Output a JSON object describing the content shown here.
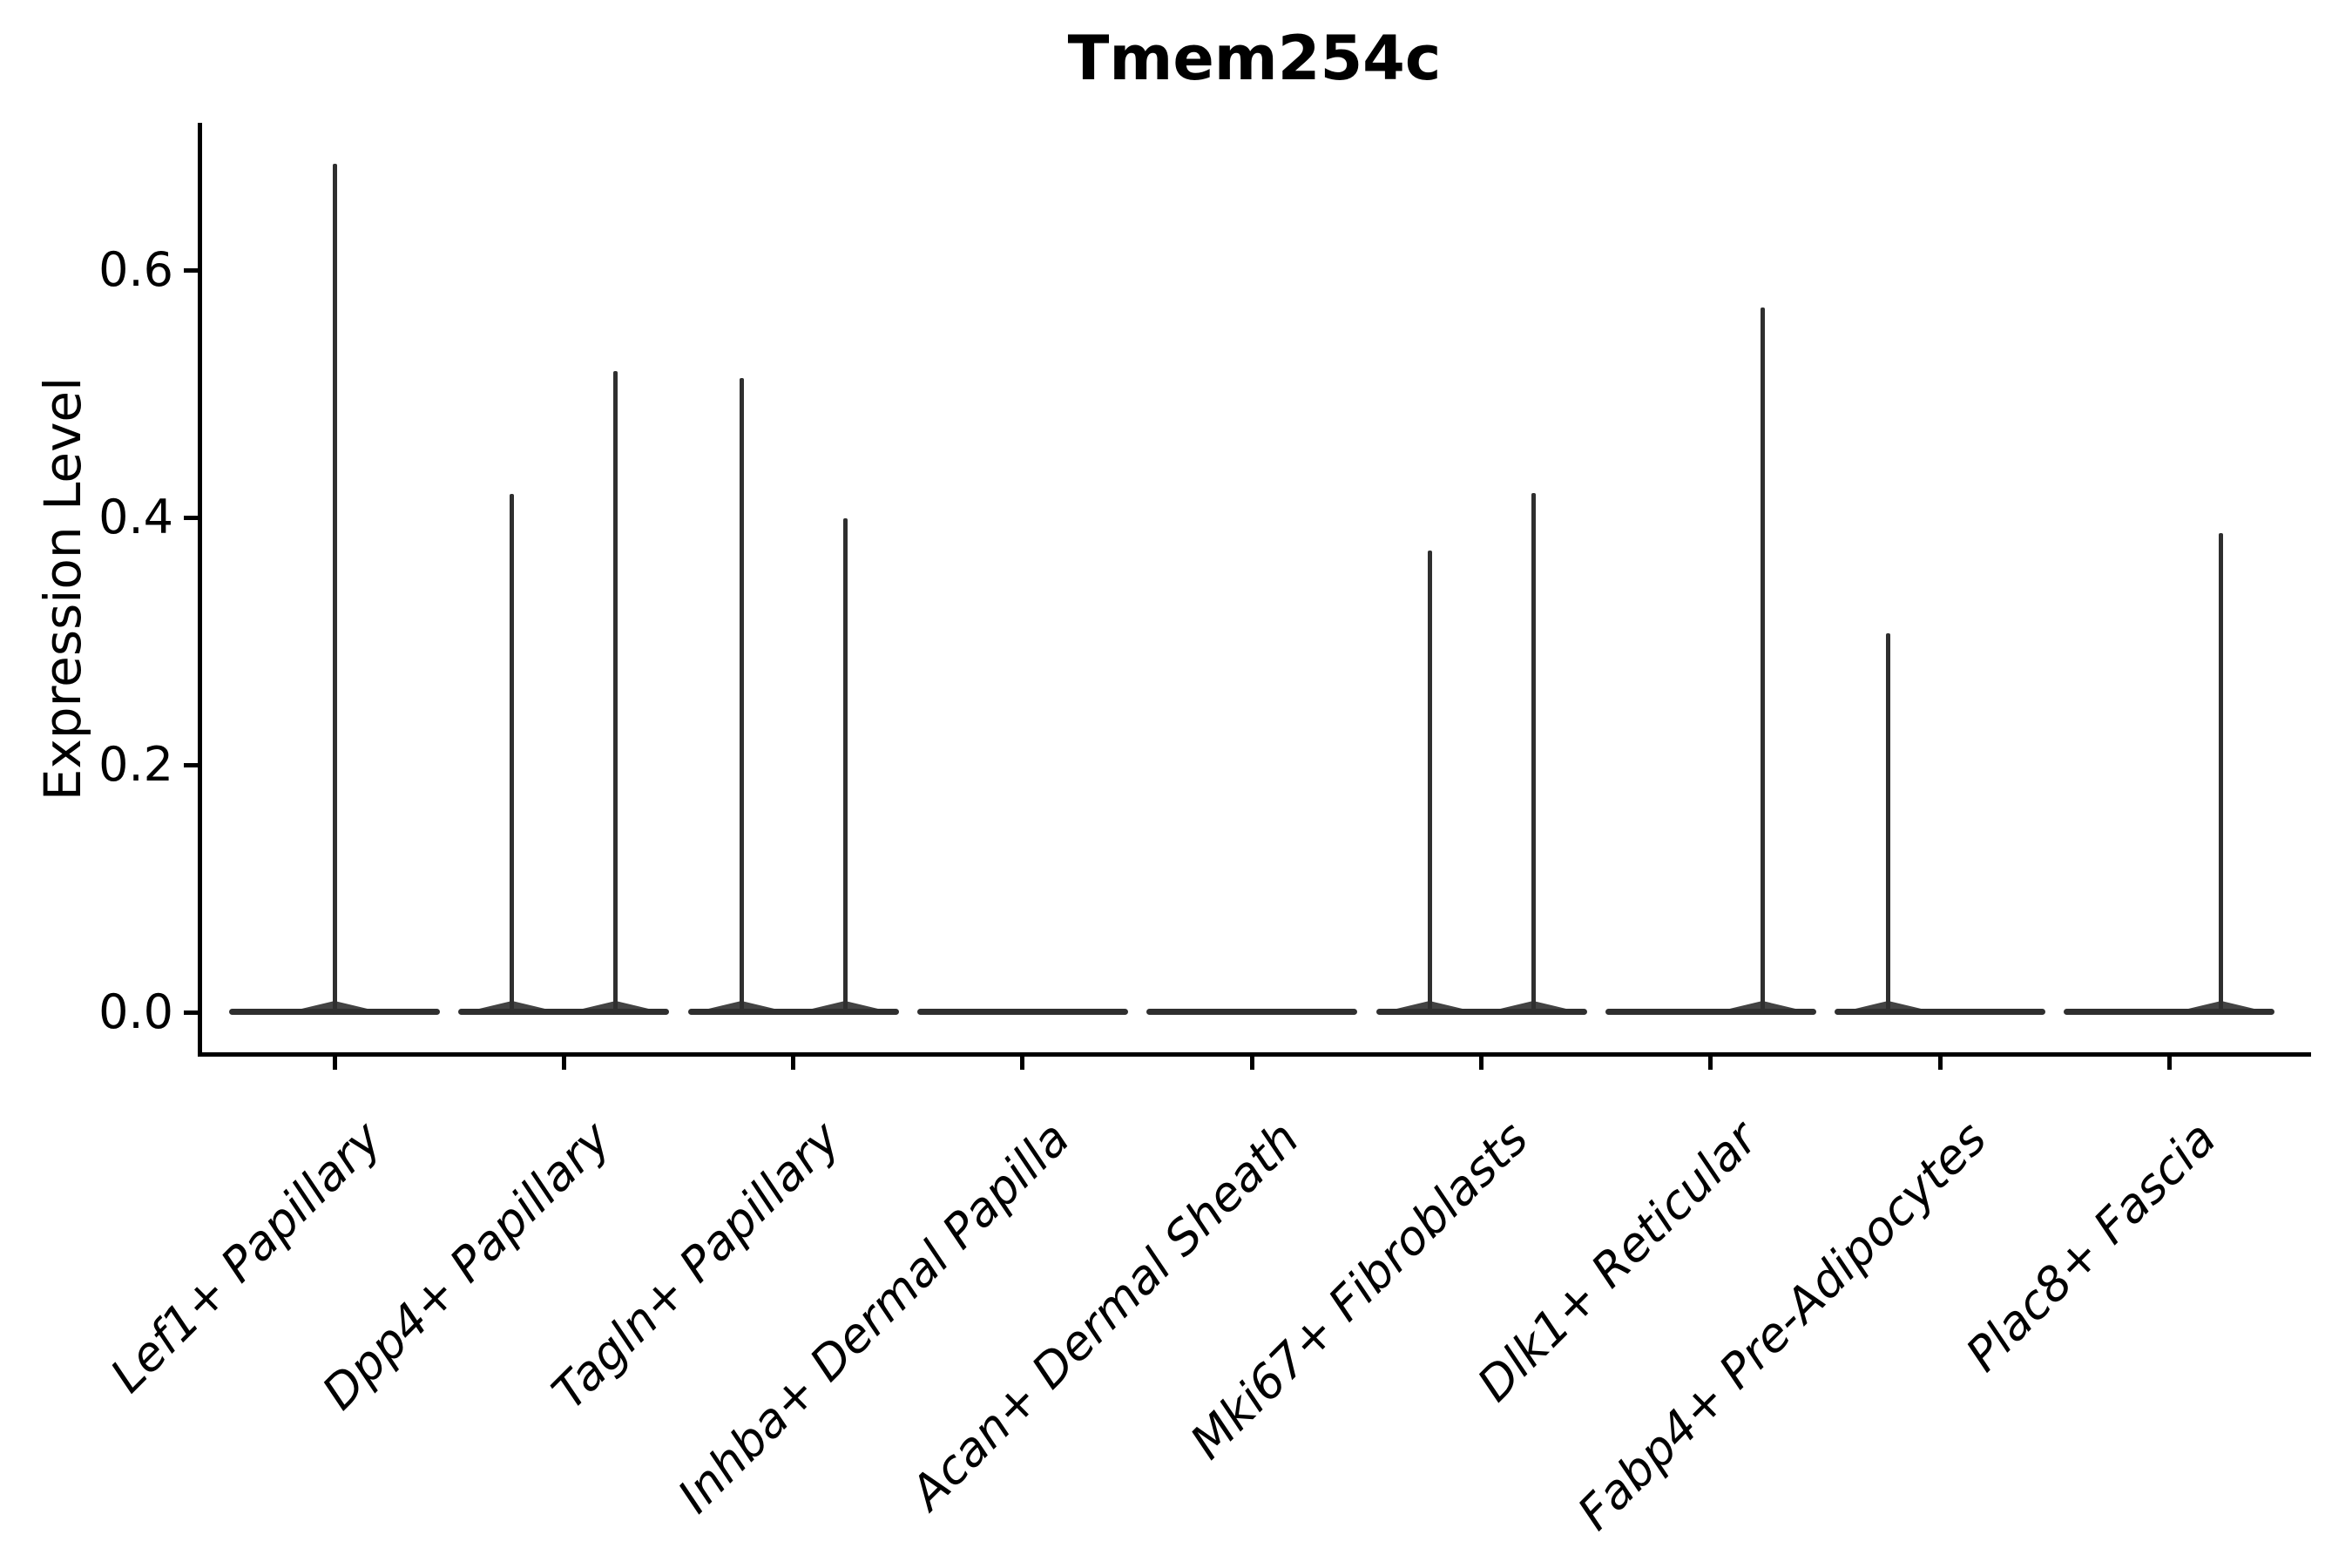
{
  "chart_data": {
    "type": "violin",
    "title": "Tmem254c",
    "xlabel": "",
    "ylabel": "Expression Level",
    "ylim": [
      0,
      0.72
    ],
    "yticks": [
      0.0,
      0.2,
      0.4,
      0.6
    ],
    "ytick_labels": [
      "0.0",
      "0.2",
      "0.4",
      "0.6"
    ],
    "grid": false,
    "legend": null,
    "background": "#ffffff",
    "violin_color": "#2f2f2f",
    "axis_color": "#000000",
    "categories": [
      "Lef1+ Papillary",
      "Dpp4+ Papillary",
      "Tagln+ Papillary",
      "Inhba+ Dermal Papilla",
      "Acan+ Dermal Sheath",
      "Mki67+ Fibroblasts",
      "Dlk1+ Reticular",
      "Fabp4+ Pre-Adipocytes",
      "Plac8+ Fascia"
    ],
    "violins": [
      {
        "category": "Lef1+ Papillary",
        "baseline_value": 0.0,
        "spikes": [
          {
            "position": "center",
            "max": 0.686
          }
        ]
      },
      {
        "category": "Dpp4+ Papillary",
        "baseline_value": 0.0,
        "spikes": [
          {
            "position": "left",
            "max": 0.419
          },
          {
            "position": "right",
            "max": 0.518
          }
        ]
      },
      {
        "category": "Tagln+ Papillary",
        "baseline_value": 0.0,
        "spikes": [
          {
            "position": "left",
            "max": 0.513
          },
          {
            "position": "right",
            "max": 0.399
          }
        ]
      },
      {
        "category": "Inhba+ Dermal Papilla",
        "baseline_value": 0.0,
        "spikes": []
      },
      {
        "category": "Acan+ Dermal Sheath",
        "baseline_value": 0.0,
        "spikes": []
      },
      {
        "category": "Mki67+ Fibroblasts",
        "baseline_value": 0.0,
        "spikes": [
          {
            "position": "left",
            "max": 0.373
          },
          {
            "position": "right",
            "max": 0.42
          }
        ]
      },
      {
        "category": "Dlk1+ Reticular",
        "baseline_value": 0.0,
        "spikes": [
          {
            "position": "right",
            "max": 0.57
          }
        ]
      },
      {
        "category": "Fabp4+ Pre-Adipocytes",
        "baseline_value": 0.0,
        "spikes": [
          {
            "position": "left",
            "max": 0.306
          }
        ]
      },
      {
        "category": "Plac8+ Fascia",
        "baseline_value": 0.0,
        "spikes": [
          {
            "position": "right",
            "max": 0.387
          }
        ]
      }
    ]
  }
}
